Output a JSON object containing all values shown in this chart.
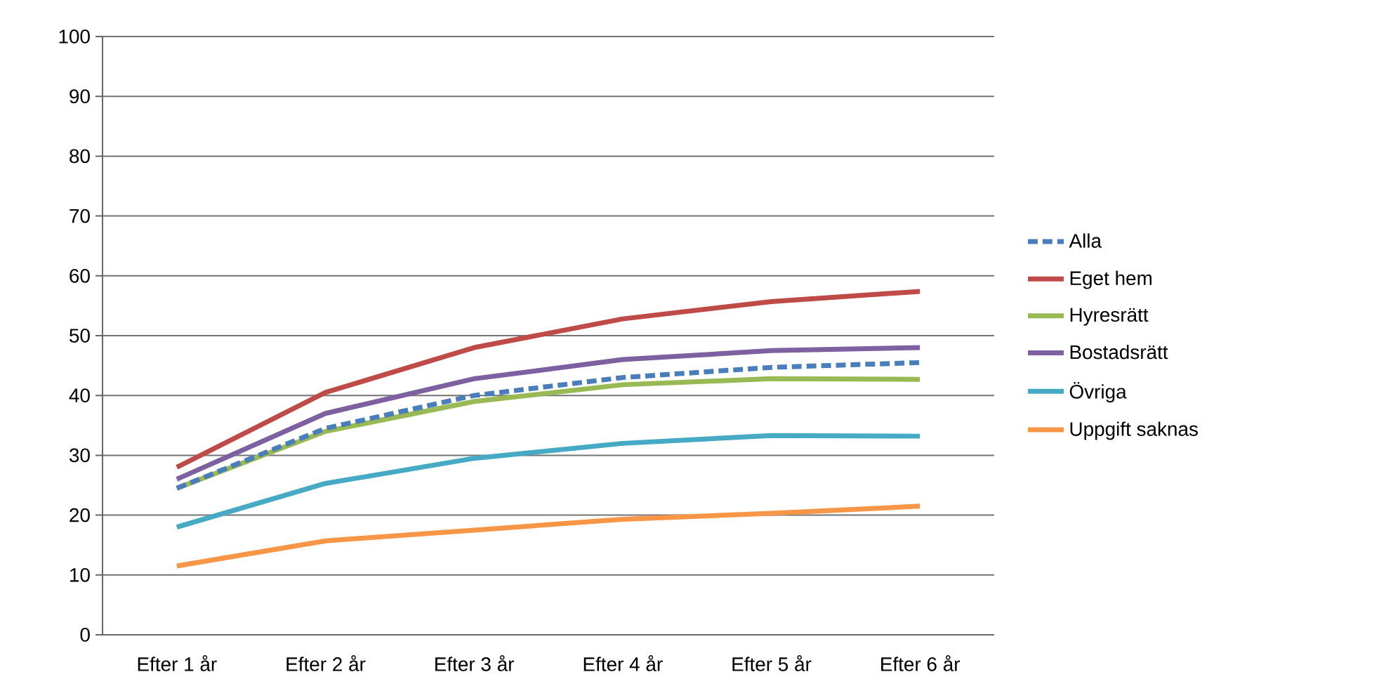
{
  "chart_data": {
    "type": "line",
    "categories": [
      "Efter 1 år",
      "Efter 2 år",
      "Efter 3 år",
      "Efter 4 år",
      "Efter 5 år",
      "Efter 6 år"
    ],
    "series": [
      {
        "name": "Alla",
        "color": "#4a7ebb",
        "line_style": "dashed",
        "values": [
          24.5,
          34.5,
          40,
          43,
          44.7,
          45.5
        ]
      },
      {
        "name": "Eget hem",
        "color": "#be4b48",
        "values": [
          28,
          40.5,
          48,
          52.8,
          55.7,
          57.4
        ]
      },
      {
        "name": "Hyresrätt",
        "color": "#98b954",
        "values": [
          24.5,
          34,
          39,
          41.8,
          42.8,
          42.7
        ]
      },
      {
        "name": "Bostadsrätt",
        "color": "#7d60a0",
        "values": [
          26,
          37,
          42.8,
          46,
          47.5,
          48
        ]
      },
      {
        "name": "Övriga",
        "color": "#46aac5",
        "values": [
          18,
          25.3,
          29.5,
          32,
          33.3,
          33.2
        ]
      },
      {
        "name": "Uppgift saknas",
        "color": "#f79646",
        "values": [
          11.5,
          15.7,
          17.5,
          19.3,
          20.3,
          21.5
        ]
      }
    ],
    "ylim": [
      0,
      100
    ],
    "yticks": [
      0,
      10,
      20,
      30,
      40,
      50,
      60,
      70,
      80,
      90,
      100
    ],
    "grid": "y",
    "legend": "right",
    "marker": "none",
    "line_style": "solid"
  }
}
